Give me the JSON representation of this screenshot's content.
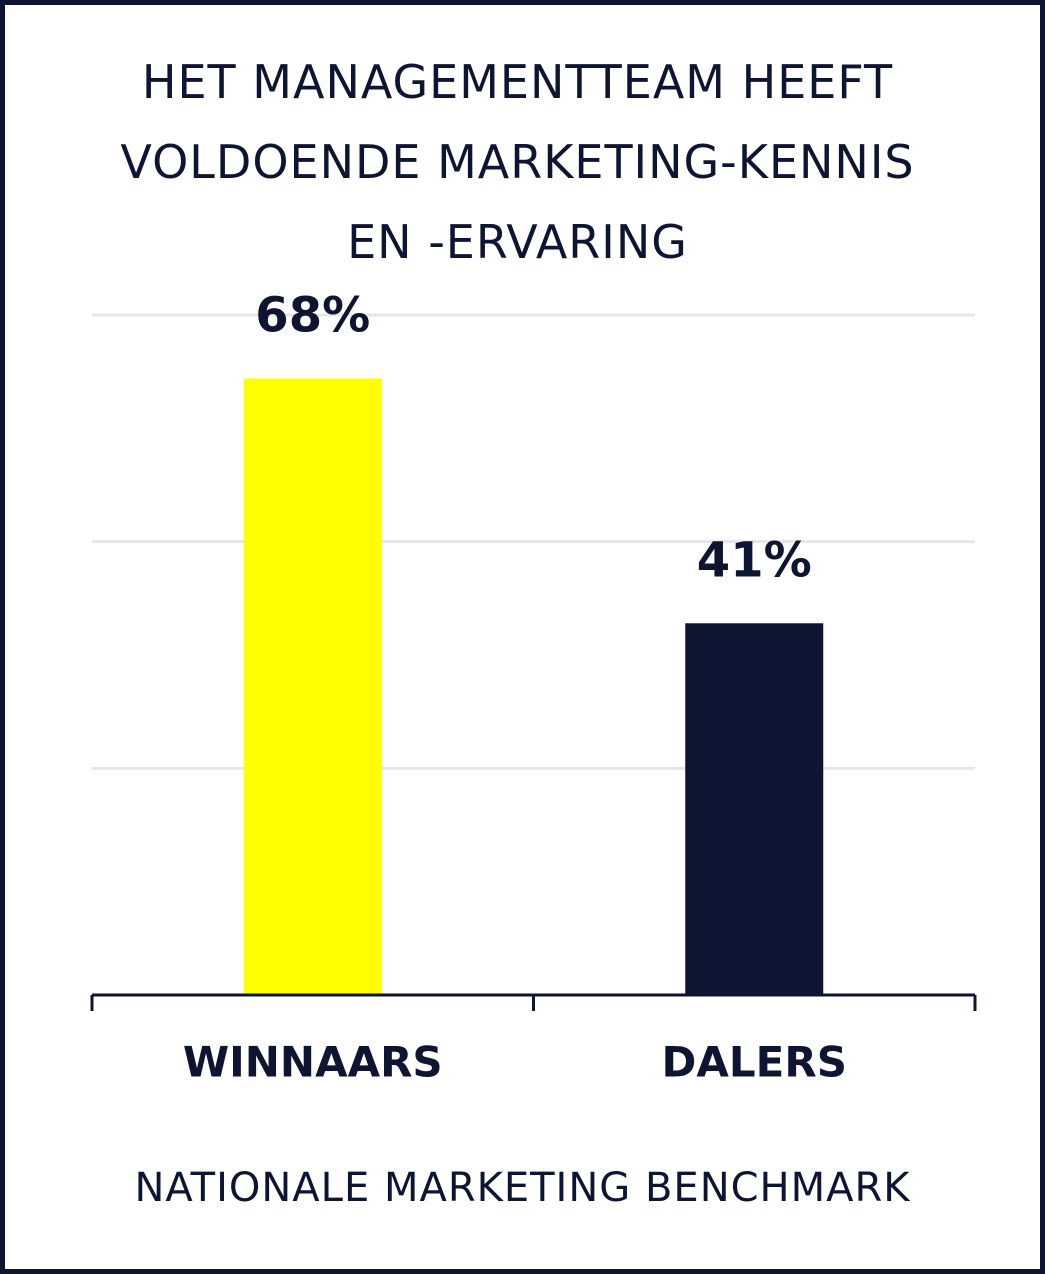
{
  "chart_data": {
    "type": "bar",
    "title": "HET MANAGEMENTTEAM HEEFT VOLDOENDE MARKETING-KENNIS EN -ERVARING",
    "categories": [
      "WINNAARS",
      "DALERS"
    ],
    "values": [
      68,
      41
    ],
    "value_labels": [
      "68%",
      "41%"
    ],
    "colors": [
      "#ffff00",
      "#0e1533"
    ],
    "ylim": [
      0,
      75
    ],
    "yticks": [
      0,
      25,
      50,
      75
    ],
    "grid": true,
    "footer": "NATIONALE MARKETING BENCHMARK"
  }
}
